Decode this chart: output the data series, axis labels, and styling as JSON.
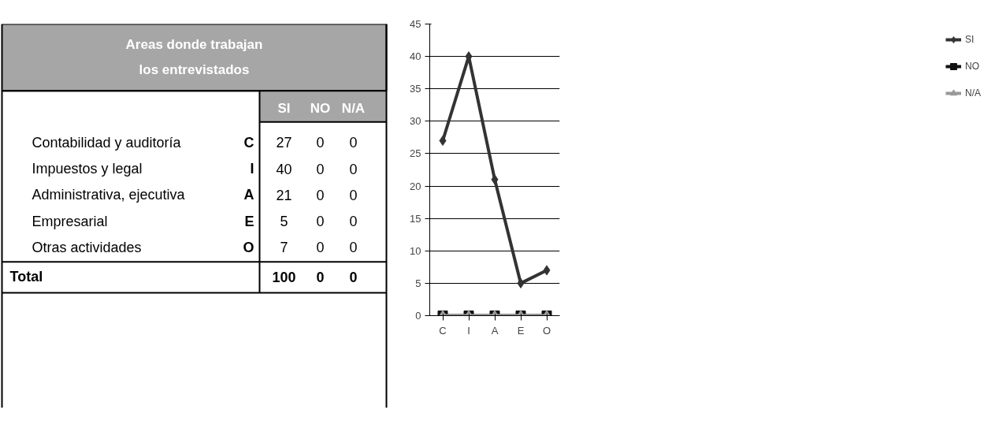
{
  "chart_data": [
    {
      "type": "other",
      "title": "Areas donde trabajan\nlos entrevistados",
      "annotations": [
        "SI",
        "NO",
        "N/A",
        "Contabilidad y auditoría",
        "C",
        "27",
        "0",
        "0",
        "Impuestos y legal",
        "I",
        "40",
        "0",
        "0",
        "Administrativa, ejecutiva",
        "A",
        "21",
        "0",
        "0",
        "Empresarial",
        "E",
        "5",
        "0",
        "0",
        "Otras actividades",
        "O",
        "7",
        "0",
        "0",
        "Total",
        "100",
        "0",
        "0"
      ]
    },
    {
      "type": "line",
      "categories": [
        "C",
        "I",
        "A",
        "E",
        "O"
      ],
      "ylim": [
        0,
        45
      ],
      "yticks": [
        0,
        5,
        10,
        15,
        20,
        25,
        30,
        35,
        40,
        45
      ],
      "grid": "y",
      "legend": "right",
      "series": [
        {
          "name": "SI",
          "color": "#333333",
          "marker": "diamond",
          "values": [
            27,
            40,
            21,
            5,
            7
          ]
        },
        {
          "name": "NO",
          "color": "#111111",
          "marker": "square",
          "values": [
            0,
            0,
            0,
            0,
            0
          ]
        },
        {
          "name": "N/A",
          "color": "#999999",
          "marker": "triangle",
          "values": [
            0,
            0,
            0,
            0,
            0
          ]
        }
      ]
    }
  ]
}
